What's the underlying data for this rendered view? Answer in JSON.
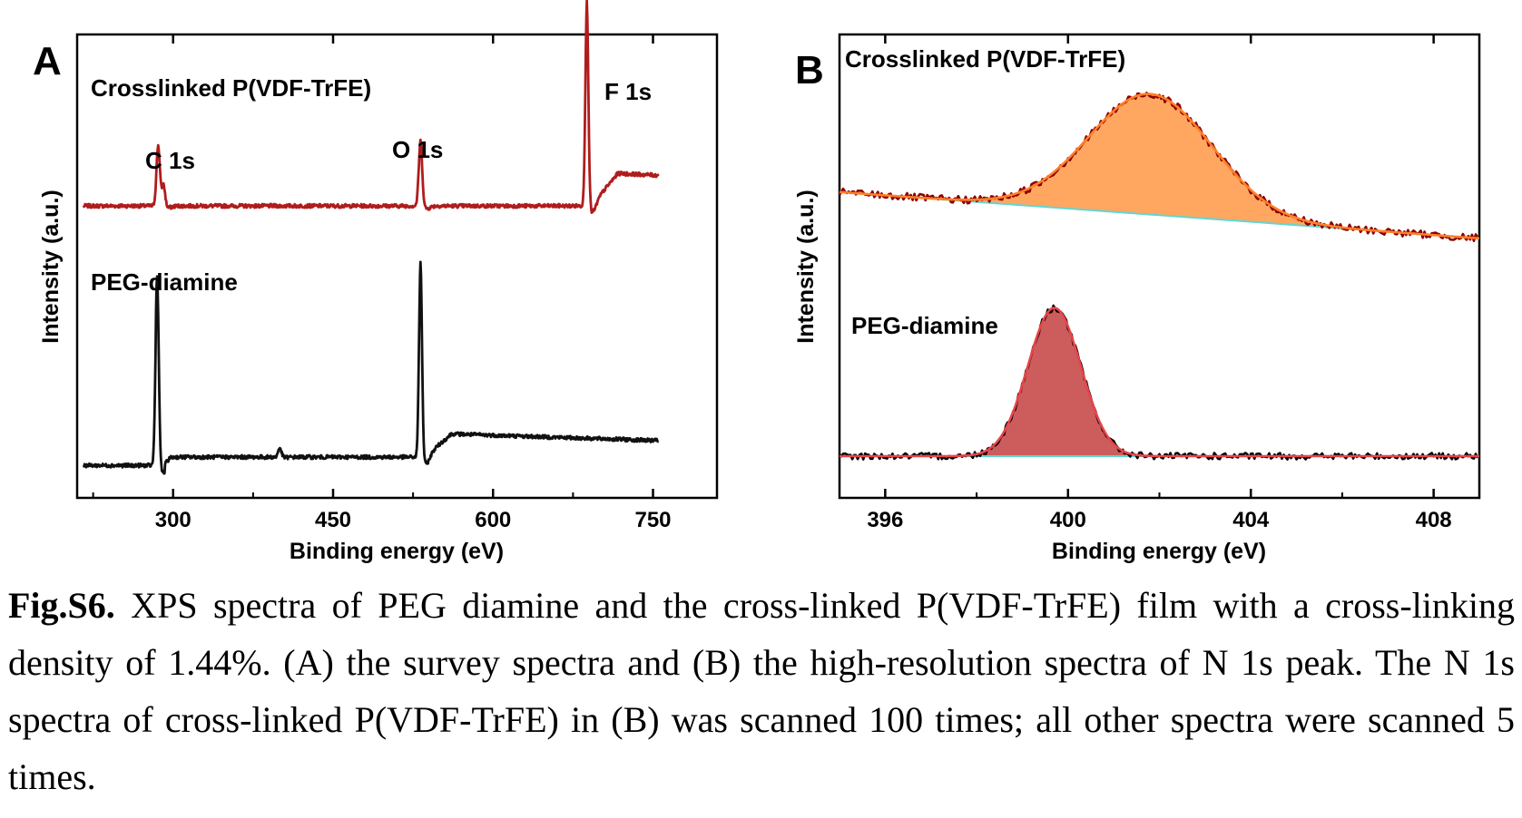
{
  "chart_data": [
    {
      "panel": "A",
      "type": "line",
      "xlabel": "Binding energy (eV)",
      "ylabel": "Intensity (a.u.)",
      "xlim": [
        210,
        810
      ],
      "ylim": [
        0,
        1
      ],
      "xticks": [
        300,
        450,
        600,
        750
      ],
      "yticks_labeled": false,
      "grid": false,
      "annotations": [
        {
          "text": "C 1s",
          "x": 290
        },
        {
          "text": "O 1s",
          "x": 533
        },
        {
          "text": "F 1s",
          "x": 688
        }
      ],
      "series": [
        {
          "name": "Crosslinked P(VDF-TrFE)",
          "color": "#b01c1c",
          "baseline": 0.63,
          "peaks": [
            {
              "x": 286,
              "height": 0.13,
              "width": 1.6
            },
            {
              "x": 291,
              "height": 0.05,
              "width": 1.6
            },
            {
              "x": 532,
              "height": 0.14,
              "width": 1.6
            },
            {
              "x": 688,
              "height": 0.44,
              "width": 1.4
            }
          ],
          "step": {
            "x": 688,
            "rise": 0.07
          }
        },
        {
          "name": "PEG-diamine",
          "color": "#111111",
          "baseline": 0.07,
          "peaks": [
            {
              "x": 285,
              "height": 0.41,
              "width": 1.5
            },
            {
              "x": 400,
              "height": 0.02,
              "width": 1.5
            },
            {
              "x": 532,
              "height": 0.42,
              "width": 1.4
            }
          ],
          "step": {
            "x": 532,
            "rise": 0.05
          }
        }
      ]
    },
    {
      "panel": "B",
      "type": "line",
      "xlabel": "Binding energy (eV)",
      "ylabel": "Intensity (a.u.)",
      "xlim": [
        395,
        409
      ],
      "ylim": [
        0,
        1
      ],
      "xticks": [
        396,
        400,
        404,
        408
      ],
      "yticks_labeled": false,
      "grid": false,
      "series": [
        {
          "name": "Crosslinked P(VDF-TrFE)",
          "data_color": "#8b0000",
          "fit_color": "#ff7f27",
          "fill_color": "#ffa760",
          "background_color": "#5fd6d6",
          "baseline_start": 0.66,
          "baseline_end": 0.56,
          "peak_center": 401.8,
          "peak_height": 0.26,
          "peak_sigma": 1.35
        },
        {
          "name": "PEG-diamine",
          "data_color": "#000000",
          "fit_color": "#e8454a",
          "fill_color": "#cd5c5c",
          "background_color": "#5fd6d6",
          "baseline_start": 0.09,
          "baseline_end": 0.09,
          "peak_center": 399.7,
          "peak_height": 0.32,
          "peak_sigma": 0.58
        }
      ]
    }
  ],
  "caption": {
    "label": "Fig.S6.",
    "text": " XPS spectra of PEG diamine and the cross-linked P(VDF-TrFE) film with a cross-linking density of 1.44%. (A) the survey spectra and (B) the high-resolution spectra of N 1s peak. The N 1s spectra of cross-linked P(VDF-TrFE) in (B) was scanned 100 times; all other spectra were scanned 5 times."
  }
}
